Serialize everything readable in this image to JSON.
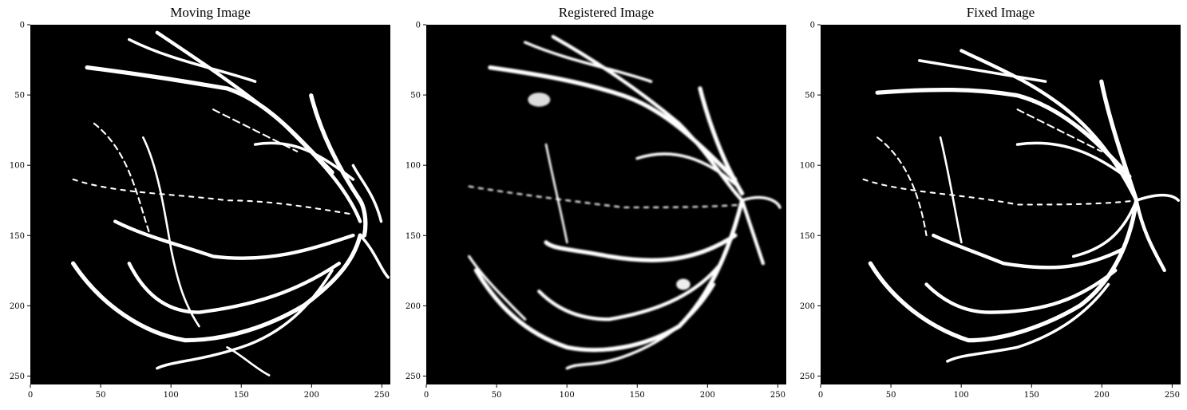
{
  "panels": [
    {
      "title": "Moving Image"
    },
    {
      "title": "Registered Image"
    },
    {
      "title": "Fixed Image"
    }
  ],
  "axes": {
    "x_ticks": [
      "0",
      "50",
      "100",
      "150",
      "200",
      "250"
    ],
    "y_ticks": [
      "0",
      "50",
      "100",
      "150",
      "200",
      "250"
    ],
    "x_tick_values": [
      0,
      50,
      100,
      150,
      200,
      250
    ],
    "y_tick_values": [
      0,
      50,
      100,
      150,
      200,
      250
    ],
    "range": [
      0,
      256
    ]
  },
  "colors": {
    "background": "#000000",
    "vessel": "#ffffff"
  }
}
